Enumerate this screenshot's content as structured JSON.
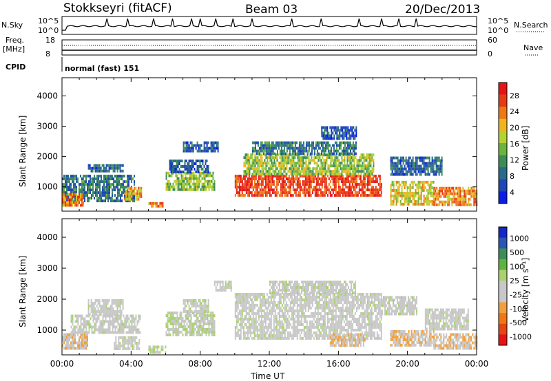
{
  "header": {
    "station": "Stokkseyri (fitACF)",
    "beam": "Beam 03",
    "date": "20/Dec/2013"
  },
  "nsky": {
    "label": "N.Sky",
    "right_label": "N.Search",
    "left_ticks": [
      "10^5",
      "10^0"
    ],
    "right_ticks": [
      "10^5",
      "10^0"
    ]
  },
  "freq": {
    "label_top": "Freq.",
    "label_unit": "[MHz]",
    "left_ticks": [
      "18",
      "8"
    ],
    "right_ticks": [
      "60",
      "0"
    ],
    "right_label": "Nave"
  },
  "cpid": {
    "label": "CPID",
    "value": "normal (fast) 151"
  },
  "time_axis": {
    "label": "Time UT",
    "ticks": [
      "00:00",
      "04:00",
      "08:00",
      "12:00",
      "16:00",
      "20:00",
      "00:00"
    ]
  },
  "range_axis": {
    "label": "Slant Range [km]",
    "ticks": [
      "4000",
      "3000",
      "2000",
      "1000"
    ]
  },
  "colors": {
    "power": [
      "#0a1ee6",
      "#1e46b4",
      "#2a6a8a",
      "#3c8c5a",
      "#6cb43c",
      "#b4d234",
      "#f0b41e",
      "#f07814",
      "#e63c14",
      "#e61414"
    ],
    "velocity": [
      "#1428c8",
      "#2a56b4",
      "#3c8c5a",
      "#5cb43c",
      "#aad26e",
      "#c8c8c8",
      "#c8c8c8",
      "#f0a040",
      "#f07814",
      "#e64614",
      "#e61414"
    ]
  },
  "chart_data": [
    {
      "type": "heatmap",
      "title": "Power",
      "xlabel": "Time UT",
      "ylabel": "Slant Range [km]",
      "x_range_hours": [
        0,
        24
      ],
      "y_range_km": [
        200,
        4600
      ],
      "colorbar": {
        "label": "Power [dB]",
        "ticks": [
          "28",
          "24",
          "20",
          "16",
          "12",
          "8",
          "4"
        ],
        "range": [
          0,
          30
        ]
      },
      "regions": [
        {
          "t0": 0.0,
          "t1": 4.2,
          "r0": 500,
          "r1": 1400,
          "level": 8
        },
        {
          "t0": 0.0,
          "t1": 1.2,
          "r0": 400,
          "r1": 800,
          "level": 22
        },
        {
          "t0": 1.5,
          "t1": 3.5,
          "r0": 1500,
          "r1": 1750,
          "level": 7
        },
        {
          "t0": 3.6,
          "t1": 4.6,
          "r0": 600,
          "r1": 1000,
          "level": 20
        },
        {
          "t0": 5.0,
          "t1": 5.8,
          "r0": 350,
          "r1": 500,
          "level": 22
        },
        {
          "t0": 6.0,
          "t1": 8.8,
          "r0": 900,
          "r1": 1500,
          "level": 14
        },
        {
          "t0": 6.2,
          "t1": 8.5,
          "r0": 1500,
          "r1": 1900,
          "level": 6
        },
        {
          "t0": 7.0,
          "t1": 9.0,
          "r0": 2200,
          "r1": 2500,
          "level": 6
        },
        {
          "t0": 10.0,
          "t1": 18.5,
          "r0": 700,
          "r1": 1400,
          "level": 26
        },
        {
          "t0": 10.5,
          "t1": 18.0,
          "r0": 1400,
          "r1": 2100,
          "level": 15
        },
        {
          "t0": 11.0,
          "t1": 17.0,
          "r0": 2100,
          "r1": 2500,
          "level": 8
        },
        {
          "t0": 15.0,
          "t1": 17.0,
          "r0": 2600,
          "r1": 3000,
          "level": 5
        },
        {
          "t0": 19.0,
          "t1": 22.0,
          "r0": 1400,
          "r1": 2000,
          "level": 7
        },
        {
          "t0": 19.0,
          "t1": 21.5,
          "r0": 400,
          "r1": 1200,
          "level": 18
        },
        {
          "t0": 21.5,
          "t1": 24.0,
          "r0": 450,
          "r1": 1000,
          "level": 22
        }
      ]
    },
    {
      "type": "heatmap",
      "title": "Velocity",
      "xlabel": "Time UT",
      "ylabel": "Slant Range [km]",
      "x_range_hours": [
        0,
        24
      ],
      "y_range_km": [
        200,
        4600
      ],
      "colorbar": {
        "label": "Velocity [m s⁻¹]",
        "ticks": [
          "1000",
          "500",
          "100",
          "25",
          "-25",
          "-100",
          "-500",
          "-1000"
        ],
        "range": [
          -1200,
          1200
        ]
      },
      "regions": [
        {
          "t0": 0.0,
          "t1": 1.5,
          "r0": 400,
          "r1": 900,
          "level": -300
        },
        {
          "t0": 0.5,
          "t1": 4.5,
          "r0": 900,
          "r1": 1500,
          "level": 0
        },
        {
          "t0": 1.5,
          "t1": 3.5,
          "r0": 1500,
          "r1": 2000,
          "level": 0
        },
        {
          "t0": 3.0,
          "t1": 4.5,
          "r0": 400,
          "r1": 800,
          "level": 0
        },
        {
          "t0": 5.0,
          "t1": 6.0,
          "r0": 300,
          "r1": 500,
          "level": 80
        },
        {
          "t0": 6.0,
          "t1": 8.8,
          "r0": 800,
          "r1": 1600,
          "level": 90
        },
        {
          "t0": 7.0,
          "t1": 8.5,
          "r0": 1600,
          "r1": 2000,
          "level": 40
        },
        {
          "t0": 8.8,
          "t1": 9.8,
          "r0": 2300,
          "r1": 2600,
          "level": 0
        },
        {
          "t0": 10.0,
          "t1": 18.5,
          "r0": 700,
          "r1": 2200,
          "level": 0
        },
        {
          "t0": 12.0,
          "t1": 17.0,
          "r0": 2200,
          "r1": 2600,
          "level": 0
        },
        {
          "t0": 15.5,
          "t1": 17.5,
          "r0": 500,
          "r1": 900,
          "level": -300
        },
        {
          "t0": 18.5,
          "t1": 20.5,
          "r0": 1500,
          "r1": 2100,
          "level": 0
        },
        {
          "t0": 19.0,
          "t1": 21.5,
          "r0": 500,
          "r1": 1000,
          "level": -300
        },
        {
          "t0": 21.0,
          "t1": 23.5,
          "r0": 1000,
          "r1": 1700,
          "level": 0
        },
        {
          "t0": 21.5,
          "t1": 24.0,
          "r0": 400,
          "r1": 900,
          "level": -300
        }
      ]
    }
  ]
}
